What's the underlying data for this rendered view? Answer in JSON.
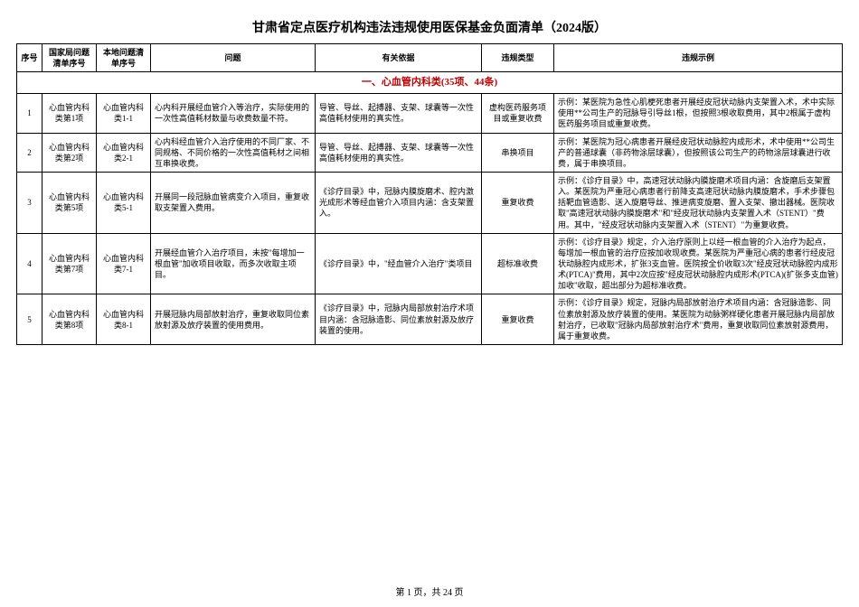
{
  "title": "甘肃省定点医疗机构违法违规使用医保基金负面清单（2024版）",
  "headers": {
    "seq": "序号",
    "national": "国家局问题清单序号",
    "local": "本地问题清单序号",
    "problem": "问题",
    "basis": "有关依据",
    "type": "违规类型",
    "example": "违规示例"
  },
  "section": "一、心血管内科类(35项、44条)",
  "rows": [
    {
      "seq": "1",
      "nat": "心血管内科类第1项",
      "loc": "心血管内科类1-1",
      "prob": "心内科开展经血管介入等治疗，实际使用的一次性高值耗材数量与收费数量不符。",
      "basis": "导管、导丝、起搏器、支架、球囊等一次性高值耗材使用的真实性。",
      "type": "虚构医药服务项目或重复收费",
      "ex": "示例：某医院为急性心肌梗死患者开展经皮冠状动脉内支架置入术，术中实际使用**公司生产的冠脉导引导丝1根，但按照3根收取费用，其中2根属于虚构医药服务项目或重复收费。"
    },
    {
      "seq": "2",
      "nat": "心血管内科类第2项",
      "loc": "心血管内科类2-1",
      "prob": "心内科经血管介入治疗使用的不同厂家、不同规格、不同价格的一次性高值耗材之间相互串换收费。",
      "basis": "导管、导丝、起搏器、支架、球囊等一次性高值耗材使用的真实性。",
      "type": "串换项目",
      "ex": "示例：某医院为冠心病患者开展经皮冠状动脉腔内成形术，术中使用**公司生产的普通球囊（非药物涂层球囊），但按照该公司生产的药物涂层球囊进行收费，属于串换项目。"
    },
    {
      "seq": "3",
      "nat": "心血管内科类第5项",
      "loc": "心血管内科类5-1",
      "prob": "开展同一段冠脉血管病变介入项目，重复收取支架置入费用。",
      "basis": "《诊疗目录》中，冠脉内膜旋磨术、腔内激光成形术等经血管介入项目内涵：含支架置入。",
      "type": "重复收费",
      "ex": "示例：《诊疗目录》中，高速冠状动脉内膜旋磨术项目内涵：含旋磨后支架置入。某医院为严重冠心病患者行前降支高速冠状动脉内膜旋磨术，手术步骤包括靶血管造影、送入旋磨导丝、推进病变旋磨、置入支架、撤出器械。医院收取\"高速冠状动脉内膜旋磨术\"和\"经皮冠状动脉内支架置入术（STENT）\"费用。其中，\"经皮冠状动脉内支架置入术（STENT）\"为重复收费。"
    },
    {
      "seq": "4",
      "nat": "心血管内科类第7项",
      "loc": "心血管内科类7-1",
      "prob": "开展经血管介入治疗项目，未按\"每增加一根血管\"加收项目收取，而多次收取主项目。",
      "basis": "《诊疗目录》中，\"经血管介入治疗\"类项目",
      "type": "超标准收费",
      "ex": "示例：《诊疗目录》规定，介入治疗原则上以经一根血管的介入治疗为起点，每增加一根血管的治疗应按加收现收费。某医院为严重冠心病的患者行经皮冠状动脉腔内成形术，扩张3支血管。医院按全价收取3次\"经皮冠状动脉腔内成形术(PTCA)\"费用，其中2次应按\"经皮冠状动脉腔内成形术(PTCA)(扩张多支血管)加收\"收取，超出部分为超标准收费。"
    },
    {
      "seq": "5",
      "nat": "心血管内科类第8项",
      "loc": "心血管内科类8-1",
      "prob": "开展冠脉内局部放射治疗，重复收取同位素放射源及放疗装置的使用费用。",
      "basis": "《诊疗目录》中，冠脉内局部放射治疗术项目内涵：含冠脉造影、同位素放射源及放疗装置的使用。",
      "type": "重复收费",
      "ex": "示例：《诊疗目录》规定，冠脉内局部放射治疗术项目内涵：含冠脉造影、同位素放射源及放疗装置的使用。某医院为动脉粥样硬化患者开展冠脉内局部放射治疗，已收取\"冠脉内局部放射治疗术\"费用，重复收取同位素放射源费用，属于重复收费。"
    }
  ],
  "footer": "第 1 页，共 24 页"
}
